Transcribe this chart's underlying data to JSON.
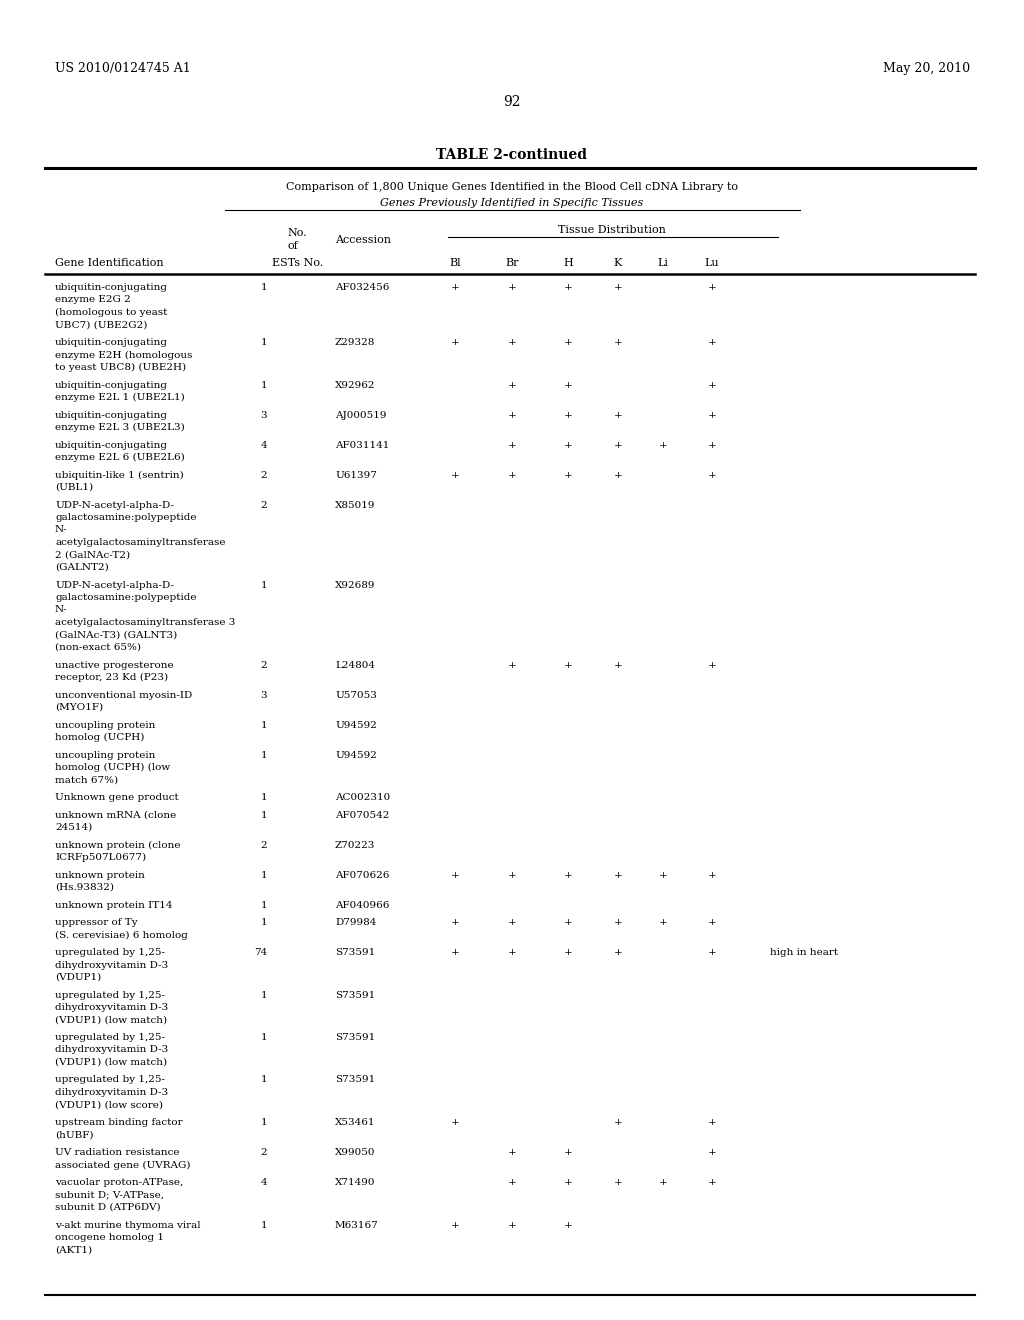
{
  "header_left": "US 2010/0124745 A1",
  "header_right": "May 20, 2010",
  "page_number": "92",
  "table_title": "TABLE 2-continued",
  "subtitle_line1": "Comparison of 1,800 Unique Genes Identified in the Blood Cell cDNA Library to",
  "subtitle_line2": "Genes Previously Identified in Specific Tissues",
  "rows": [
    {
      "gene": "ubiquitin-conjugating\nenzyme E2G 2\n(homologous to yeast\nUBC7) (UBE2G2)",
      "ests": "1",
      "accession": "AF032456",
      "Bl": "+",
      "Br": "+",
      "H": "+",
      "K": "+",
      "Li": "",
      "Lu": "+",
      "note": ""
    },
    {
      "gene": "ubiquitin-conjugating\nenzyme E2H (homologous\nto yeast UBC8) (UBE2H)",
      "ests": "1",
      "accession": "Z29328",
      "Bl": "+",
      "Br": "+",
      "H": "+",
      "K": "+",
      "Li": "",
      "Lu": "+",
      "note": ""
    },
    {
      "gene": "ubiquitin-conjugating\nenzyme E2L 1 (UBE2L1)",
      "ests": "1",
      "accession": "X92962",
      "Bl": "",
      "Br": "+",
      "H": "+",
      "K": "",
      "Li": "",
      "Lu": "+",
      "note": ""
    },
    {
      "gene": "ubiquitin-conjugating\nenzyme E2L 3 (UBE2L3)",
      "ests": "3",
      "accession": "AJ000519",
      "Bl": "",
      "Br": "+",
      "H": "+",
      "K": "+",
      "Li": "",
      "Lu": "+",
      "note": ""
    },
    {
      "gene": "ubiquitin-conjugating\nenzyme E2L 6 (UBE2L6)",
      "ests": "4",
      "accession": "AF031141",
      "Bl": "",
      "Br": "+",
      "H": "+",
      "K": "+",
      "Li": "+",
      "Lu": "+",
      "note": ""
    },
    {
      "gene": "ubiquitin-like 1 (sentrin)\n(UBL1)",
      "ests": "2",
      "accession": "U61397",
      "Bl": "+",
      "Br": "+",
      "H": "+",
      "K": "+",
      "Li": "",
      "Lu": "+",
      "note": ""
    },
    {
      "gene": "UDP-N-acetyl-alpha-D-\ngalactosamine:polypeptide\nN-\nacetylgalactosaminyltransferase\n2 (GalNAc-T2)\n(GALNT2)",
      "ests": "2",
      "accession": "X85019",
      "Bl": "",
      "Br": "",
      "H": "",
      "K": "",
      "Li": "",
      "Lu": "",
      "note": ""
    },
    {
      "gene": "UDP-N-acetyl-alpha-D-\ngalactosamine:polypeptide\nN-\nacetylgalactosaminyltransferase 3\n(GalNAc-T3) (GALNT3)\n(non-exact 65%)",
      "ests": "1",
      "accession": "X92689",
      "Bl": "",
      "Br": "",
      "H": "",
      "K": "",
      "Li": "",
      "Lu": "",
      "note": ""
    },
    {
      "gene": "unactive progesterone\nreceptor, 23 Kd (P23)",
      "ests": "2",
      "accession": "L24804",
      "Bl": "",
      "Br": "+",
      "H": "+",
      "K": "+",
      "Li": "",
      "Lu": "+",
      "note": ""
    },
    {
      "gene": "unconventional myosin-ID\n(MYO1F)",
      "ests": "3",
      "accession": "U57053",
      "Bl": "",
      "Br": "",
      "H": "",
      "K": "",
      "Li": "",
      "Lu": "",
      "note": ""
    },
    {
      "gene": "uncoupling protein\nhomolog (UCPH)",
      "ests": "1",
      "accession": "U94592",
      "Bl": "",
      "Br": "",
      "H": "",
      "K": "",
      "Li": "",
      "Lu": "",
      "note": ""
    },
    {
      "gene": "uncoupling protein\nhomolog (UCPH) (low\nmatch 67%)",
      "ests": "1",
      "accession": "U94592",
      "Bl": "",
      "Br": "",
      "H": "",
      "K": "",
      "Li": "",
      "Lu": "",
      "note": ""
    },
    {
      "gene": "Unknown gene product",
      "ests": "1",
      "accession": "AC002310",
      "Bl": "",
      "Br": "",
      "H": "",
      "K": "",
      "Li": "",
      "Lu": "",
      "note": ""
    },
    {
      "gene": "unknown mRNA (clone\n24514)",
      "ests": "1",
      "accession": "AF070542",
      "Bl": "",
      "Br": "",
      "H": "",
      "K": "",
      "Li": "",
      "Lu": "",
      "note": ""
    },
    {
      "gene": "unknown protein (clone\nICRFp507L0677)",
      "ests": "2",
      "accession": "Z70223",
      "Bl": "",
      "Br": "",
      "H": "",
      "K": "",
      "Li": "",
      "Lu": "",
      "note": ""
    },
    {
      "gene": "unknown protein\n(Hs.93832)",
      "ests": "1",
      "accession": "AF070626",
      "Bl": "+",
      "Br": "+",
      "H": "+",
      "K": "+",
      "Li": "+",
      "Lu": "+",
      "note": ""
    },
    {
      "gene": "unknown protein IT14",
      "ests": "1",
      "accession": "AF040966",
      "Bl": "",
      "Br": "",
      "H": "",
      "K": "",
      "Li": "",
      "Lu": "",
      "note": ""
    },
    {
      "gene": "uppressor of Ty\n(S. cerevisiae) 6 homolog",
      "ests": "1",
      "accession": "D79984",
      "Bl": "+",
      "Br": "+",
      "H": "+",
      "K": "+",
      "Li": "+",
      "Lu": "+",
      "note": ""
    },
    {
      "gene": "upregulated by 1,25-\ndihydroxyvitamin D-3\n(VDUP1)",
      "ests": "74",
      "accession": "S73591",
      "Bl": "+",
      "Br": "+",
      "H": "+",
      "K": "+",
      "Li": "",
      "Lu": "+",
      "note": "high in heart"
    },
    {
      "gene": "upregulated by 1,25-\ndihydroxyvitamin D-3\n(VDUP1) (low match)",
      "ests": "1",
      "accession": "S73591",
      "Bl": "",
      "Br": "",
      "H": "",
      "K": "",
      "Li": "",
      "Lu": "",
      "note": ""
    },
    {
      "gene": "upregulated by 1,25-\ndihydroxyvitamin D-3\n(VDUP1) (low match)",
      "ests": "1",
      "accession": "S73591",
      "Bl": "",
      "Br": "",
      "H": "",
      "K": "",
      "Li": "",
      "Lu": "",
      "note": ""
    },
    {
      "gene": "upregulated by 1,25-\ndihydroxyvitamin D-3\n(VDUP1) (low score)",
      "ests": "1",
      "accession": "S73591",
      "Bl": "",
      "Br": "",
      "H": "",
      "K": "",
      "Li": "",
      "Lu": "",
      "note": ""
    },
    {
      "gene": "upstream binding factor\n(hUBF)",
      "ests": "1",
      "accession": "X53461",
      "Bl": "+",
      "Br": "",
      "H": "",
      "K": "+",
      "Li": "",
      "Lu": "+",
      "note": ""
    },
    {
      "gene": "UV radiation resistance\nassociated gene (UVRAG)",
      "ests": "2",
      "accession": "X99050",
      "Bl": "",
      "Br": "+",
      "H": "+",
      "K": "",
      "Li": "",
      "Lu": "+",
      "note": ""
    },
    {
      "gene": "vacuolar proton-ATPase,\nsubunit D; V-ATPase,\nsubunit D (ATP6DV)",
      "ests": "4",
      "accession": "X71490",
      "Bl": "",
      "Br": "+",
      "H": "+",
      "K": "+",
      "Li": "+",
      "Lu": "+",
      "note": ""
    },
    {
      "gene": "v-akt murine thymoma viral\noncogene homolog 1\n(AKT1)",
      "ests": "1",
      "accession": "M63167",
      "Bl": "+",
      "Br": "+",
      "H": "+",
      "K": "",
      "Li": "",
      "Lu": "",
      "note": ""
    }
  ]
}
